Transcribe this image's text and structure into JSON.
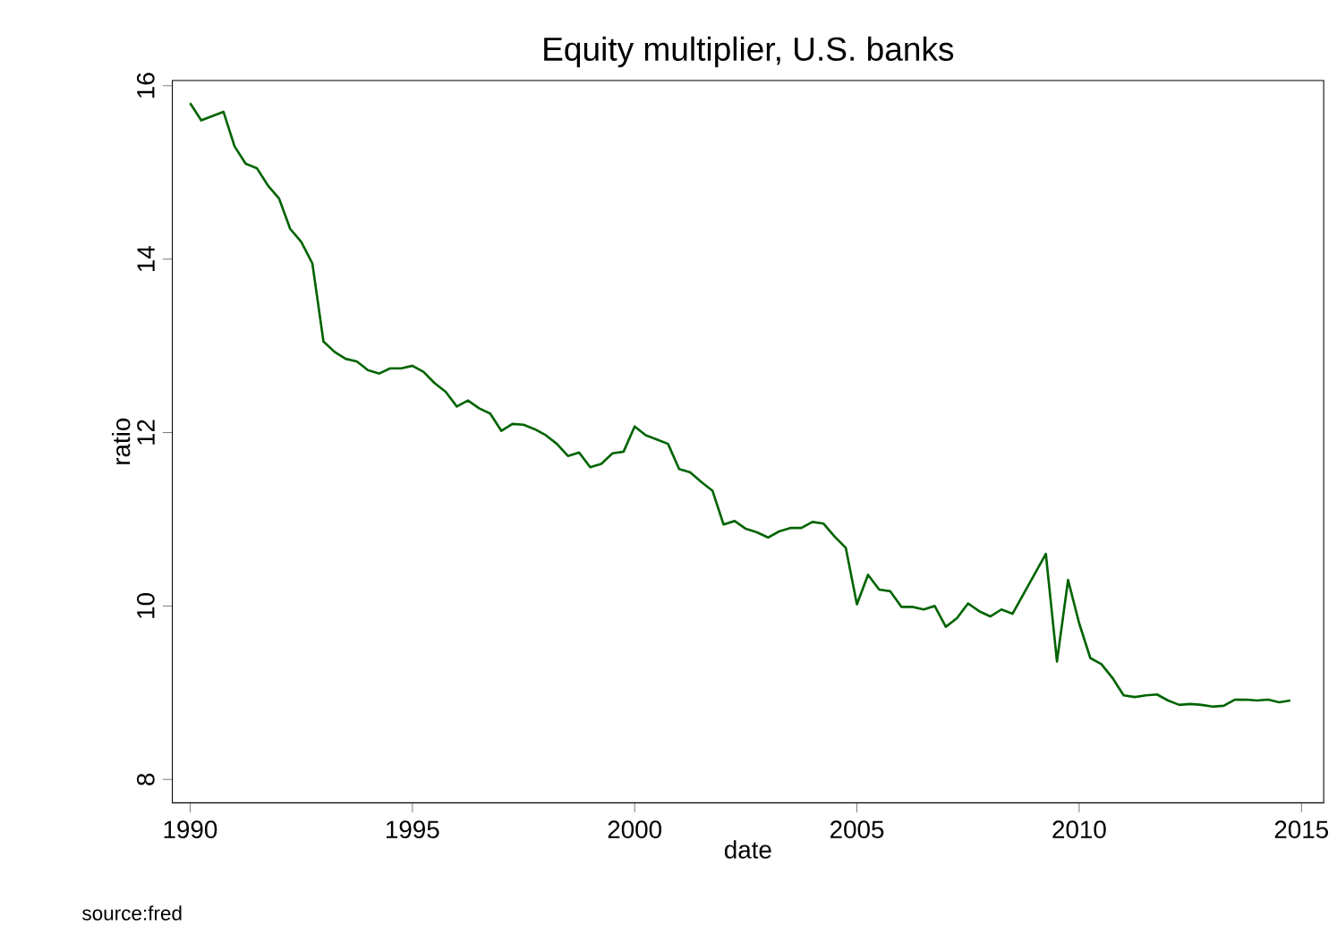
{
  "chart_data": {
    "type": "line",
    "title": "Equity multiplier, U.S. banks",
    "xlabel": "date",
    "ylabel": "ratio",
    "annotations": [
      "source:fred"
    ],
    "x": [
      1990.0,
      1990.25,
      1990.5,
      1990.75,
      1991.0,
      1991.25,
      1991.5,
      1991.75,
      1992.0,
      1992.25,
      1992.5,
      1992.75,
      1993.0,
      1993.25,
      1993.5,
      1993.75,
      1994.0,
      1994.25,
      1994.5,
      1994.75,
      1995.0,
      1995.25,
      1995.5,
      1995.75,
      1996.0,
      1996.25,
      1996.5,
      1996.75,
      1997.0,
      1997.25,
      1997.5,
      1997.75,
      1998.0,
      1998.25,
      1998.5,
      1998.75,
      1999.0,
      1999.25,
      1999.5,
      1999.75,
      2000.0,
      2000.25,
      2000.5,
      2000.75,
      2001.0,
      2001.25,
      2001.5,
      2001.75,
      2002.0,
      2002.25,
      2002.5,
      2002.75,
      2003.0,
      2003.25,
      2003.5,
      2003.75,
      2004.0,
      2004.25,
      2004.5,
      2004.75,
      2005.0,
      2005.25,
      2005.5,
      2005.75,
      2006.0,
      2006.25,
      2006.5,
      2006.75,
      2007.0,
      2007.25,
      2007.5,
      2007.75,
      2008.0,
      2008.25,
      2008.5,
      2009.25,
      2009.5,
      2009.75,
      2010.0,
      2010.25,
      2010.5,
      2010.75,
      2011.0,
      2011.25,
      2011.5,
      2011.75,
      2012.0,
      2012.25,
      2012.5,
      2012.75,
      2013.0,
      2013.25,
      2013.5,
      2013.75,
      2014.0,
      2014.25,
      2014.5,
      2014.75
    ],
    "series": [
      {
        "color": "#006400",
        "values": [
          15.8,
          15.6,
          15.65,
          15.7,
          15.3,
          15.1,
          15.05,
          14.85,
          14.7,
          14.35,
          14.2,
          13.95,
          13.05,
          12.93,
          12.85,
          12.82,
          12.72,
          12.68,
          12.74,
          12.74,
          12.77,
          12.7,
          12.57,
          12.47,
          12.3,
          12.37,
          12.28,
          12.22,
          12.02,
          12.1,
          12.09,
          12.04,
          11.97,
          11.87,
          11.73,
          11.77,
          11.6,
          11.64,
          11.76,
          11.78,
          12.07,
          11.97,
          11.92,
          11.87,
          11.58,
          11.54,
          11.43,
          11.33,
          10.94,
          10.98,
          10.89,
          10.85,
          10.79,
          10.86,
          10.9,
          10.9,
          10.97,
          10.95,
          10.8,
          10.67,
          10.02,
          10.36,
          10.19,
          10.17,
          9.99,
          9.99,
          9.96,
          10.0,
          9.76,
          9.86,
          10.03,
          9.94,
          9.88,
          9.96,
          9.91,
          10.6,
          9.36,
          10.3,
          9.8,
          9.4,
          9.33,
          9.17,
          8.97,
          8.95,
          8.97,
          8.98,
          8.91,
          8.86,
          8.87,
          8.86,
          8.84,
          8.85,
          8.92,
          8.92,
          8.91,
          8.92,
          8.89,
          8.91
        ]
      }
    ],
    "xlim": [
      1989.6,
      2015.5
    ],
    "ylim": [
      7.73,
      16.06
    ],
    "xticks": [
      1990,
      1995,
      2000,
      2005,
      2010,
      2015
    ],
    "yticks": [
      8,
      10,
      12,
      14,
      16
    ],
    "grid": false,
    "line_style": "solid",
    "marker": "none"
  }
}
